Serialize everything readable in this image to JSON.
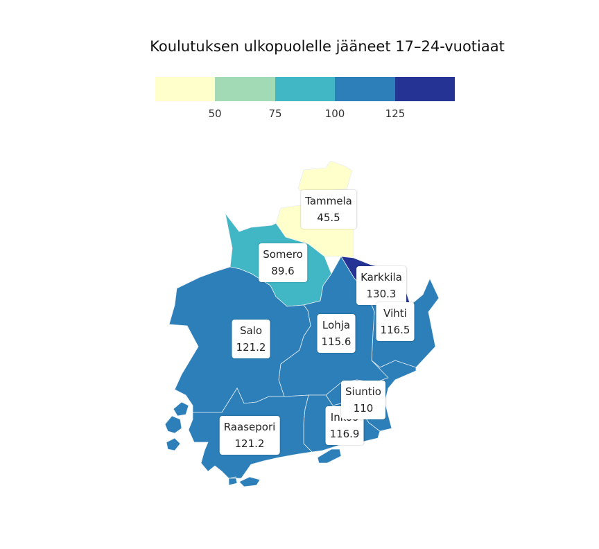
{
  "title": "Koulutuksen ulkopuolelle jääneet 17–24-vuotiaat",
  "legend": {
    "colors": [
      "#ffffcc",
      "#a1dab4",
      "#41b6c4",
      "#2c7fb8",
      "#253494"
    ],
    "ticks": [
      "50",
      "75",
      "100",
      "125"
    ]
  },
  "map": {
    "regions": [
      {
        "id": "tammela",
        "name": "Tammela",
        "value": "45.5",
        "color": "#ffffcc"
      },
      {
        "id": "somero",
        "name": "Somero",
        "value": "89.6",
        "color": "#41b6c4"
      },
      {
        "id": "karkkila",
        "name": "Karkkila",
        "value": "130.3",
        "color": "#253494"
      },
      {
        "id": "vihti",
        "name": "Vihti",
        "value": "116.5",
        "color": "#2c7fb8"
      },
      {
        "id": "lohja",
        "name": "Lohja",
        "value": "115.6",
        "color": "#2c7fb8"
      },
      {
        "id": "salo",
        "name": "Salo",
        "value": "121.2",
        "color": "#2c7fb8"
      },
      {
        "id": "siuntio",
        "name": "Siuntio",
        "value": "110",
        "color": "#2c7fb8"
      },
      {
        "id": "inkoo",
        "name": "Inkoo",
        "value": "116.9",
        "color": "#2c7fb8"
      },
      {
        "id": "raasepori",
        "name": "Raasepori",
        "value": "121.2",
        "color": "#2c7fb8"
      }
    ]
  }
}
